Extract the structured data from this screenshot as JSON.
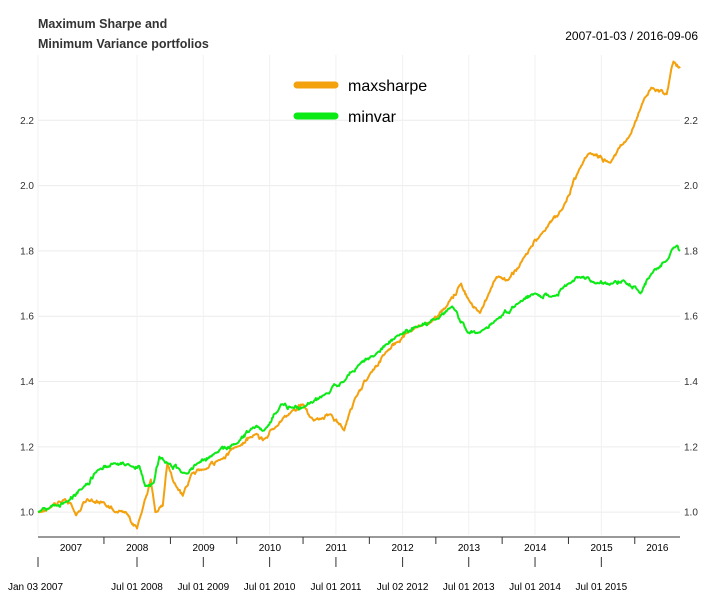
{
  "chart_data": {
    "type": "line",
    "title_lines": [
      "Maximum Sharpe and",
      "Minimum Variance portfolios"
    ],
    "date_range": "2007-01-03 / 2016-09-06",
    "ylim": [
      0.93,
      2.4
    ],
    "y_ticks": [
      1.0,
      1.2,
      1.4,
      1.6,
      1.8,
      2.0,
      2.2
    ],
    "y_tick_labels": [
      "1.0",
      "1.2",
      "1.4",
      "1.6",
      "1.8",
      "2.0",
      "2.2"
    ],
    "x_range": [
      "2007-01-03",
      "2016-09-06"
    ],
    "year_labels": [
      "2007",
      "2008",
      "2009",
      "2010",
      "2011",
      "2012",
      "2013",
      "2014",
      "2015",
      "2016"
    ],
    "date_labels": [
      {
        "label": "Jan 03 2007",
        "date": "2007-01-03"
      },
      {
        "label": "Jul 01 2008",
        "date": "2008-07-01"
      },
      {
        "label": "Jul 01 2009",
        "date": "2009-07-01"
      },
      {
        "label": "Jul 01 2010",
        "date": "2010-07-01"
      },
      {
        "label": "Jul 01 2011",
        "date": "2011-07-01"
      },
      {
        "label": "Jul 02 2012",
        "date": "2012-07-02"
      },
      {
        "label": "Jul 01 2013",
        "date": "2013-07-01"
      },
      {
        "label": "Jul 01 2014",
        "date": "2014-07-01"
      },
      {
        "label": "Jul 01 2015",
        "date": "2015-07-01"
      }
    ],
    "grid": true,
    "legend_position": "top-center",
    "series": [
      {
        "name": "maxsharpe",
        "color": "#f4a10e",
        "points": [
          [
            "2007-01-03",
            1.0
          ],
          [
            "2007-03-01",
            1.01
          ],
          [
            "2007-06-01",
            1.04
          ],
          [
            "2007-08-01",
            0.99
          ],
          [
            "2007-10-01",
            1.04
          ],
          [
            "2008-01-01",
            1.03
          ],
          [
            "2008-03-01",
            1.0
          ],
          [
            "2008-05-01",
            1.0
          ],
          [
            "2008-07-01",
            0.95
          ],
          [
            "2008-08-01",
            1.01
          ],
          [
            "2008-09-15",
            1.1
          ],
          [
            "2008-10-10",
            1.0
          ],
          [
            "2008-11-20",
            1.02
          ],
          [
            "2008-12-15",
            1.15
          ],
          [
            "2009-02-01",
            1.08
          ],
          [
            "2009-03-10",
            1.05
          ],
          [
            "2009-05-01",
            1.12
          ],
          [
            "2009-07-01",
            1.13
          ],
          [
            "2009-10-01",
            1.16
          ],
          [
            "2010-01-01",
            1.2
          ],
          [
            "2010-04-20",
            1.24
          ],
          [
            "2010-05-25",
            1.22
          ],
          [
            "2010-08-01",
            1.26
          ],
          [
            "2010-11-01",
            1.31
          ],
          [
            "2011-01-01",
            1.33
          ],
          [
            "2011-03-01",
            1.28
          ],
          [
            "2011-06-01",
            1.3
          ],
          [
            "2011-08-15",
            1.25
          ],
          [
            "2011-10-15",
            1.35
          ],
          [
            "2012-01-01",
            1.42
          ],
          [
            "2012-04-01",
            1.49
          ],
          [
            "2012-06-01",
            1.52
          ],
          [
            "2012-08-01",
            1.55
          ],
          [
            "2012-12-01",
            1.58
          ],
          [
            "2013-03-01",
            1.63
          ],
          [
            "2013-05-20",
            1.7
          ],
          [
            "2013-07-01",
            1.65
          ],
          [
            "2013-09-01",
            1.61
          ],
          [
            "2013-12-01",
            1.72
          ],
          [
            "2014-02-01",
            1.71
          ],
          [
            "2014-05-01",
            1.78
          ],
          [
            "2014-08-01",
            1.85
          ],
          [
            "2014-12-01",
            1.93
          ],
          [
            "2015-03-01",
            2.05
          ],
          [
            "2015-05-01",
            2.1
          ],
          [
            "2015-08-20",
            2.07
          ],
          [
            "2015-12-01",
            2.15
          ],
          [
            "2016-02-10",
            2.25
          ],
          [
            "2016-04-01",
            2.3
          ],
          [
            "2016-06-25",
            2.28
          ],
          [
            "2016-08-01",
            2.38
          ],
          [
            "2016-09-06",
            2.36
          ]
        ]
      },
      {
        "name": "minvar",
        "color": "#0cea16",
        "points": [
          [
            "2007-01-03",
            1.0
          ],
          [
            "2007-03-01",
            1.01
          ],
          [
            "2007-06-01",
            1.03
          ],
          [
            "2007-09-01",
            1.07
          ],
          [
            "2007-12-01",
            1.13
          ],
          [
            "2008-03-01",
            1.15
          ],
          [
            "2008-06-01",
            1.14
          ],
          [
            "2008-07-15",
            1.14
          ],
          [
            "2008-08-15",
            1.08
          ],
          [
            "2008-10-01",
            1.09
          ],
          [
            "2008-11-01",
            1.17
          ],
          [
            "2008-12-15",
            1.15
          ],
          [
            "2009-03-10",
            1.12
          ],
          [
            "2009-06-01",
            1.15
          ],
          [
            "2009-09-01",
            1.18
          ],
          [
            "2010-01-01",
            1.21
          ],
          [
            "2010-04-01",
            1.26
          ],
          [
            "2010-06-01",
            1.25
          ],
          [
            "2010-09-01",
            1.33
          ],
          [
            "2010-11-01",
            1.32
          ],
          [
            "2011-01-01",
            1.32
          ],
          [
            "2011-05-01",
            1.36
          ],
          [
            "2011-08-15",
            1.4
          ],
          [
            "2011-11-01",
            1.45
          ],
          [
            "2012-02-01",
            1.48
          ],
          [
            "2012-06-01",
            1.54
          ],
          [
            "2012-10-01",
            1.57
          ],
          [
            "2013-01-01",
            1.59
          ],
          [
            "2013-04-01",
            1.63
          ],
          [
            "2013-06-25",
            1.55
          ],
          [
            "2013-09-01",
            1.55
          ],
          [
            "2013-12-01",
            1.59
          ],
          [
            "2014-04-01",
            1.64
          ],
          [
            "2014-07-01",
            1.67
          ],
          [
            "2014-10-01",
            1.66
          ],
          [
            "2015-01-01",
            1.7
          ],
          [
            "2015-03-01",
            1.72
          ],
          [
            "2015-06-01",
            1.7
          ],
          [
            "2015-09-01",
            1.7
          ],
          [
            "2015-11-01",
            1.71
          ],
          [
            "2016-02-01",
            1.67
          ],
          [
            "2016-04-01",
            1.73
          ],
          [
            "2016-06-25",
            1.77
          ],
          [
            "2016-08-01",
            1.81
          ],
          [
            "2016-09-06",
            1.8
          ]
        ]
      }
    ]
  }
}
